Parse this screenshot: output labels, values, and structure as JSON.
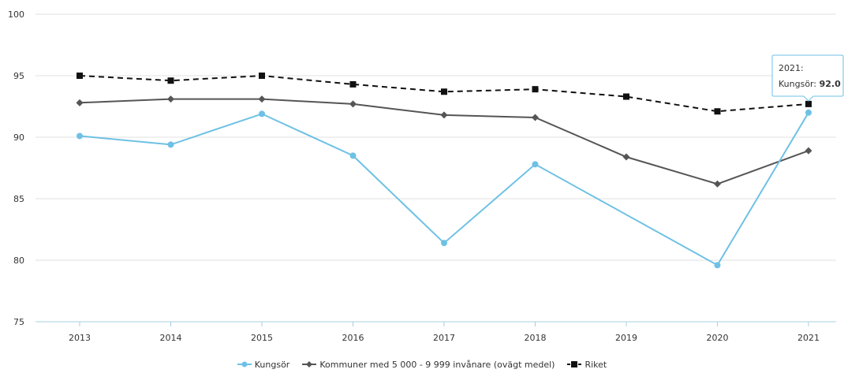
{
  "chart_data": {
    "type": "line",
    "categories": [
      "2013",
      "2014",
      "2015",
      "2016",
      "2017",
      "2018",
      "2019",
      "2020",
      "2021"
    ],
    "ylim": [
      75,
      100
    ],
    "yticks": [
      "75",
      "80",
      "85",
      "90",
      "95",
      "100"
    ],
    "grid": true,
    "legend_position": "bottom",
    "series": [
      {
        "name": "Kungsör",
        "color": "#6ec1e4",
        "marker": "circle",
        "dash": "solid",
        "values": [
          90.1,
          89.4,
          91.9,
          88.5,
          81.4,
          87.8,
          null,
          79.6,
          92.0
        ]
      },
      {
        "name": "Kommuner med 5 000 - 9 999 invånare (ovägt medel)",
        "color": "#555555",
        "marker": "diamond",
        "dash": "solid",
        "values": [
          92.8,
          93.1,
          93.1,
          92.7,
          91.8,
          91.6,
          88.4,
          86.2,
          88.9
        ]
      },
      {
        "name": "Riket",
        "color": "#111111",
        "marker": "square",
        "dash": "dashed",
        "values": [
          95.0,
          94.6,
          95.0,
          94.3,
          93.7,
          93.9,
          93.3,
          92.1,
          92.7
        ]
      }
    ],
    "tooltip": {
      "line1": "2021:",
      "label": "Kungsör:",
      "value": "92.0"
    }
  }
}
